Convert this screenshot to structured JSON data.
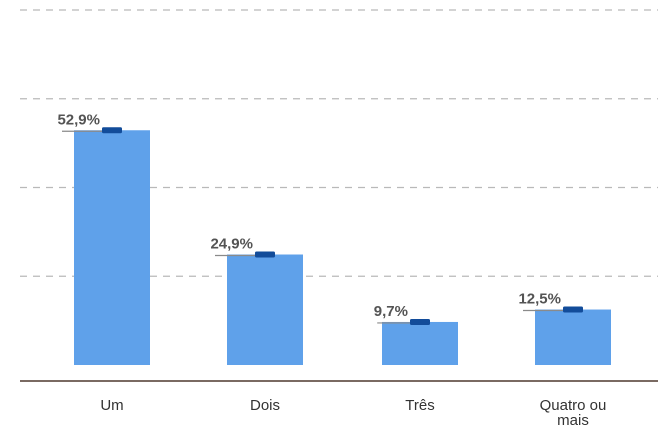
{
  "chart_data": {
    "type": "bar",
    "categories": [
      "Um",
      "Dois",
      "Três",
      "Quatro ou mais"
    ],
    "category_label_lines": [
      [
        "Um"
      ],
      [
        "Dois"
      ],
      [
        "Três"
      ],
      [
        "Quatro ou",
        "mais"
      ]
    ],
    "values": [
      52.9,
      24.9,
      9.7,
      12.5
    ],
    "value_labels": [
      "52,9%",
      "24,9%",
      "9,7%",
      "12,5%"
    ],
    "ylim": [
      0,
      80
    ],
    "grid": true,
    "colors": {
      "bar": "#5fa1ea",
      "cap": "#124c9a",
      "grid": "#b9b9b9",
      "axis": "#7a6a62",
      "label": "#545454"
    }
  }
}
